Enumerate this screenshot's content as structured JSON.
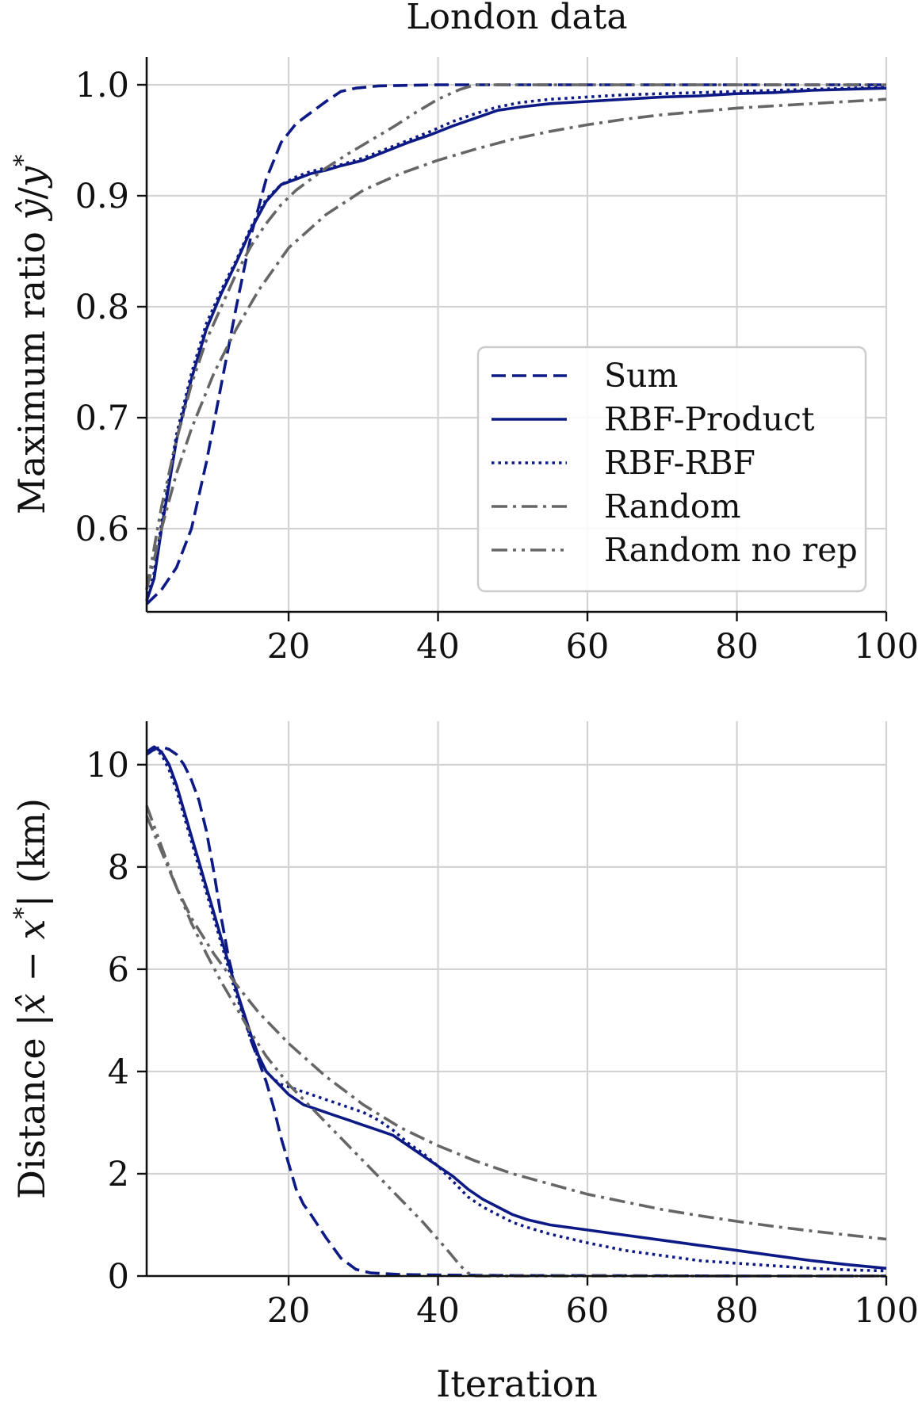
{
  "figure_title": "London data",
  "colors": {
    "navy": "#0d1a86",
    "gray": "#666666"
  },
  "legend_entries": [
    {
      "label": "Sum",
      "series": "sum"
    },
    {
      "label": "RBF-Product",
      "series": "rbf_product"
    },
    {
      "label": "RBF-RBF",
      "series": "rbf_rbf"
    },
    {
      "label": "Random",
      "series": "random"
    },
    {
      "label": "Random no rep",
      "series": "random_no_rep"
    }
  ],
  "chart_data": [
    {
      "type": "line",
      "title": "London data",
      "xlabel": "",
      "ylabel": "Maximum ratio ŷ/y*",
      "ylabel_parts": {
        "prefix": "Maximum ratio ",
        "y1": "ŷ",
        "slash": "/",
        "y2": "y",
        "sup": "*"
      },
      "xlim": [
        1,
        100
      ],
      "ylim": [
        0.525,
        1.025
      ],
      "xticks": [
        20,
        40,
        60,
        80,
        100
      ],
      "xtick_labels": [
        "20",
        "40",
        "60",
        "80",
        "100"
      ],
      "yticks": [
        0.6,
        0.7,
        0.8,
        0.9,
        1.0
      ],
      "ytick_labels": [
        "0.6",
        "0.7",
        "0.8",
        "0.9",
        "1.0"
      ],
      "grid": true,
      "legend": "center-right",
      "series": [
        {
          "key": "sum",
          "name": "Sum",
          "color": "navy",
          "dash": "dashed",
          "x": [
            1,
            3,
            5,
            7,
            9,
            11,
            13,
            15,
            17,
            19,
            21,
            23,
            25,
            27,
            29,
            32,
            40,
            50,
            60,
            80,
            100
          ],
          "y": [
            0.532,
            0.545,
            0.565,
            0.6,
            0.66,
            0.73,
            0.8,
            0.865,
            0.915,
            0.948,
            0.965,
            0.975,
            0.985,
            0.994,
            0.997,
            0.999,
            1.0,
            1.0,
            1.0,
            1.0,
            1.0
          ]
        },
        {
          "key": "rbf_product",
          "name": "RBF-Product",
          "color": "navy",
          "dash": "solid",
          "x": [
            1,
            2,
            3,
            4,
            5,
            7,
            9,
            11,
            13,
            15,
            17,
            19,
            21,
            23,
            25,
            27,
            30,
            33,
            36,
            39,
            42,
            45,
            48,
            51,
            55,
            60,
            65,
            70,
            75,
            80,
            85,
            90,
            95,
            100
          ],
          "y": [
            0.535,
            0.555,
            0.6,
            0.64,
            0.68,
            0.735,
            0.78,
            0.812,
            0.84,
            0.87,
            0.895,
            0.91,
            0.915,
            0.92,
            0.923,
            0.927,
            0.932,
            0.94,
            0.948,
            0.955,
            0.963,
            0.97,
            0.977,
            0.98,
            0.983,
            0.985,
            0.987,
            0.989,
            0.99,
            0.992,
            0.993,
            0.995,
            0.996,
            0.997
          ]
        },
        {
          "key": "rbf_rbf",
          "name": "RBF-RBF",
          "color": "navy",
          "dash": "dotted",
          "x": [
            1,
            2,
            3,
            4,
            5,
            7,
            9,
            11,
            13,
            15,
            17,
            19,
            21,
            23,
            25,
            27,
            30,
            33,
            36,
            39,
            42,
            45,
            48,
            51,
            55,
            60,
            65,
            70,
            75,
            80,
            85,
            90,
            95,
            100
          ],
          "y": [
            0.535,
            0.56,
            0.605,
            0.645,
            0.685,
            0.74,
            0.785,
            0.815,
            0.842,
            0.872,
            0.897,
            0.91,
            0.917,
            0.922,
            0.925,
            0.928,
            0.934,
            0.942,
            0.95,
            0.958,
            0.967,
            0.974,
            0.98,
            0.984,
            0.987,
            0.989,
            0.991,
            0.992,
            0.993,
            0.994,
            0.995,
            0.996,
            0.997,
            0.998
          ]
        },
        {
          "key": "random",
          "name": "Random",
          "color": "gray",
          "dash": "dashdot",
          "x": [
            1,
            3,
            5,
            7,
            10,
            13,
            16,
            20,
            25,
            30,
            35,
            40,
            45,
            50,
            55,
            60,
            65,
            70,
            75,
            80,
            85,
            90,
            95,
            100
          ],
          "y": [
            0.545,
            0.6,
            0.65,
            0.69,
            0.74,
            0.78,
            0.815,
            0.853,
            0.883,
            0.905,
            0.92,
            0.932,
            0.942,
            0.951,
            0.958,
            0.964,
            0.969,
            0.973,
            0.976,
            0.979,
            0.981,
            0.983,
            0.985,
            0.987
          ]
        },
        {
          "key": "random_no_rep",
          "name": "Random no rep",
          "color": "gray",
          "dash": "dashdotdot",
          "x": [
            1,
            3,
            5,
            7,
            9,
            11,
            13,
            15,
            17,
            19,
            21,
            23,
            25,
            28,
            31,
            34,
            37,
            40,
            43,
            45,
            50,
            60,
            80,
            100
          ],
          "y": [
            0.545,
            0.62,
            0.68,
            0.73,
            0.77,
            0.8,
            0.83,
            0.855,
            0.875,
            0.892,
            0.905,
            0.915,
            0.925,
            0.938,
            0.95,
            0.962,
            0.975,
            0.987,
            0.996,
            1.0,
            1.0,
            1.0,
            1.0,
            1.0
          ]
        }
      ]
    },
    {
      "type": "line",
      "title": "",
      "xlabel": "Iteration",
      "ylabel": "Distance |x̂ − x*| (km)",
      "ylabel_parts": {
        "prefix": "Distance |",
        "x1": "x̂",
        "minus": " − ",
        "x2": "x",
        "sup": "*",
        "suffix": "| (km)"
      },
      "xlim": [
        1,
        100
      ],
      "ylim": [
        0,
        10.85
      ],
      "xticks": [
        20,
        40,
        60,
        80,
        100
      ],
      "xtick_labels": [
        "20",
        "40",
        "60",
        "80",
        "100"
      ],
      "yticks": [
        0,
        2,
        4,
        6,
        8,
        10
      ],
      "ytick_labels": [
        "0",
        "2",
        "4",
        "6",
        "8",
        "10"
      ],
      "grid": true,
      "series": [
        {
          "key": "sum",
          "name": "Sum",
          "color": "navy",
          "dash": "dashed",
          "x": [
            1,
            2,
            3,
            4,
            5,
            6,
            7,
            8,
            9,
            10,
            11,
            12,
            13,
            14,
            15,
            16,
            17,
            18,
            19,
            20,
            21,
            22,
            23,
            25,
            27,
            29,
            31,
            35,
            40,
            50,
            60,
            80,
            100
          ],
          "y": [
            10.2,
            10.3,
            10.35,
            10.3,
            10.2,
            10.0,
            9.7,
            9.3,
            8.7,
            7.9,
            7.0,
            6.2,
            5.6,
            5.1,
            4.6,
            4.2,
            3.8,
            3.3,
            2.7,
            2.2,
            1.7,
            1.4,
            1.2,
            0.75,
            0.35,
            0.13,
            0.06,
            0.03,
            0.02,
            0.01,
            0.01,
            0.0,
            0.0
          ]
        },
        {
          "key": "rbf_product",
          "name": "RBF-Product",
          "color": "navy",
          "dash": "solid",
          "x": [
            1,
            2,
            3,
            4,
            5,
            6,
            7,
            8,
            9,
            10,
            11,
            12,
            13,
            14,
            15,
            16,
            17,
            18,
            19,
            20,
            21,
            22,
            24,
            26,
            28,
            30,
            32,
            34,
            36,
            38,
            40,
            42,
            44,
            46,
            48,
            50,
            52,
            55,
            60,
            65,
            70,
            75,
            80,
            85,
            90,
            95,
            100
          ],
          "y": [
            10.25,
            10.35,
            10.25,
            10.0,
            9.6,
            9.1,
            8.6,
            8.1,
            7.6,
            7.1,
            6.6,
            6.1,
            5.6,
            5.15,
            4.7,
            4.3,
            4.0,
            3.85,
            3.7,
            3.55,
            3.45,
            3.35,
            3.25,
            3.15,
            3.05,
            2.95,
            2.85,
            2.75,
            2.55,
            2.35,
            2.15,
            1.95,
            1.7,
            1.5,
            1.35,
            1.2,
            1.1,
            1.0,
            0.9,
            0.8,
            0.7,
            0.6,
            0.5,
            0.4,
            0.3,
            0.22,
            0.15
          ]
        },
        {
          "key": "rbf_rbf",
          "name": "RBF-RBF",
          "color": "navy",
          "dash": "dotted",
          "x": [
            1,
            2,
            3,
            4,
            5,
            6,
            7,
            8,
            9,
            10,
            11,
            12,
            13,
            14,
            15,
            16,
            17,
            18,
            19,
            20,
            21,
            22,
            24,
            26,
            28,
            30,
            32,
            34,
            36,
            38,
            40,
            42,
            44,
            46,
            48,
            50,
            52,
            55,
            60,
            65,
            70,
            75,
            80,
            85,
            90,
            95,
            100
          ],
          "y": [
            10.25,
            10.3,
            10.2,
            9.9,
            9.5,
            9.0,
            8.5,
            8.0,
            7.5,
            7.0,
            6.5,
            6.0,
            5.5,
            5.05,
            4.6,
            4.25,
            4.0,
            3.85,
            3.75,
            3.7,
            3.65,
            3.6,
            3.5,
            3.4,
            3.3,
            3.2,
            3.05,
            2.85,
            2.6,
            2.4,
            2.15,
            1.85,
            1.55,
            1.35,
            1.2,
            1.05,
            0.95,
            0.82,
            0.65,
            0.5,
            0.4,
            0.3,
            0.25,
            0.2,
            0.15,
            0.12,
            0.1
          ]
        },
        {
          "key": "random",
          "name": "Random",
          "color": "gray",
          "dash": "dashdot",
          "x": [
            1,
            3,
            5,
            7,
            10,
            13,
            16,
            20,
            25,
            30,
            35,
            40,
            45,
            50,
            55,
            60,
            65,
            70,
            75,
            80,
            85,
            90,
            95,
            100
          ],
          "y": [
            9.0,
            8.3,
            7.6,
            7.0,
            6.3,
            5.7,
            5.15,
            4.55,
            3.9,
            3.35,
            2.9,
            2.55,
            2.25,
            2.0,
            1.8,
            1.6,
            1.45,
            1.3,
            1.18,
            1.07,
            0.97,
            0.88,
            0.8,
            0.72
          ]
        },
        {
          "key": "random_no_rep",
          "name": "Random no rep",
          "color": "gray",
          "dash": "dashdotdot",
          "x": [
            1,
            3,
            5,
            7,
            9,
            11,
            13,
            15,
            17,
            20,
            23,
            26,
            29,
            32,
            35,
            38,
            41,
            43,
            44,
            45,
            50,
            60,
            80,
            100
          ],
          "y": [
            9.2,
            8.4,
            7.6,
            6.9,
            6.3,
            5.75,
            5.25,
            4.75,
            4.3,
            3.75,
            3.3,
            2.85,
            2.4,
            1.95,
            1.5,
            1.05,
            0.55,
            0.2,
            0.06,
            0.0,
            0.0,
            0.0,
            0.0,
            0.0
          ]
        }
      ]
    }
  ]
}
